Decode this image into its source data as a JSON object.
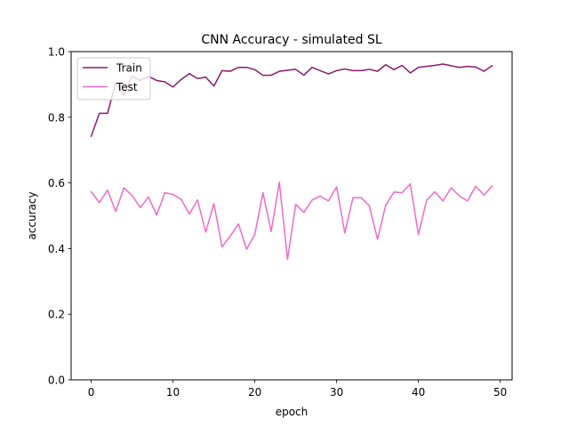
{
  "chart_data": {
    "type": "line",
    "title": "CNN Accuracy - simulated SL",
    "xlabel": "epoch",
    "ylabel": "accuracy",
    "xlim": [
      -2.45,
      51.45
    ],
    "ylim": [
      0.0,
      1.0
    ],
    "xticks": [
      0,
      10,
      20,
      30,
      40,
      50
    ],
    "xtick_labels": [
      "0",
      "10",
      "20",
      "30",
      "40",
      "50"
    ],
    "yticks": [
      0.0,
      0.2,
      0.4,
      0.6,
      0.8,
      1.0
    ],
    "ytick_labels": [
      "0.0",
      "0.2",
      "0.4",
      "0.6",
      "0.8",
      "1.0"
    ],
    "grid": false,
    "legend_position": "top-left",
    "x": [
      0,
      1,
      2,
      3,
      4,
      5,
      6,
      7,
      8,
      9,
      10,
      11,
      12,
      13,
      14,
      15,
      16,
      17,
      18,
      19,
      20,
      21,
      22,
      23,
      24,
      25,
      26,
      27,
      28,
      29,
      30,
      31,
      32,
      33,
      34,
      35,
      36,
      37,
      38,
      39,
      40,
      41,
      42,
      43,
      44,
      45,
      46,
      47,
      48,
      49
    ],
    "series": [
      {
        "name": "Train",
        "color": "#8b1a6b",
        "values": [
          0.742,
          0.812,
          0.812,
          0.905,
          0.868,
          0.925,
          0.912,
          0.925,
          0.912,
          0.908,
          0.892,
          0.915,
          0.933,
          0.918,
          0.922,
          0.895,
          0.942,
          0.94,
          0.952,
          0.952,
          0.945,
          0.928,
          0.928,
          0.94,
          0.943,
          0.946,
          0.928,
          0.952,
          0.942,
          0.932,
          0.942,
          0.947,
          0.942,
          0.942,
          0.946,
          0.94,
          0.96,
          0.945,
          0.958,
          0.935,
          0.952,
          0.955,
          0.958,
          0.962,
          0.957,
          0.952,
          0.955,
          0.953,
          0.94,
          0.957
        ]
      },
      {
        "name": "Test",
        "color": "#f26ac8",
        "values": [
          0.573,
          0.54,
          0.578,
          0.513,
          0.585,
          0.562,
          0.525,
          0.557,
          0.502,
          0.57,
          0.565,
          0.55,
          0.505,
          0.548,
          0.45,
          0.537,
          0.405,
          0.438,
          0.475,
          0.398,
          0.443,
          0.57,
          0.452,
          0.602,
          0.367,
          0.535,
          0.51,
          0.548,
          0.56,
          0.545,
          0.588,
          0.448,
          0.555,
          0.555,
          0.53,
          0.428,
          0.532,
          0.572,
          0.57,
          0.597,
          0.443,
          0.547,
          0.573,
          0.545,
          0.585,
          0.56,
          0.545,
          0.59,
          0.563,
          0.59
        ]
      }
    ]
  }
}
